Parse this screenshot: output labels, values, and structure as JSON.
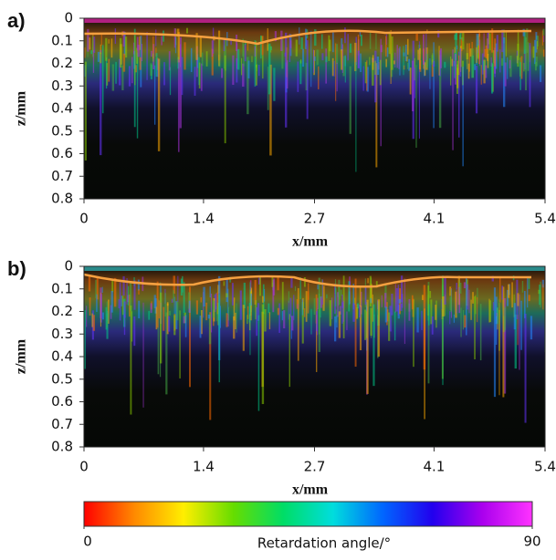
{
  "chart_data": [
    {
      "type": "image",
      "panel_label": "a)",
      "xlabel": "x/mm",
      "ylabel": "z/mm",
      "xlim": [
        0,
        5.4
      ],
      "xticks": [
        0,
        1.4,
        2.7,
        4.1,
        5.4
      ],
      "ylim": [
        0,
        0.8
      ],
      "yticks": [
        0,
        0.1,
        0.2,
        0.3,
        0.4,
        0.5,
        0.6,
        0.7,
        0.8
      ]
    },
    {
      "type": "image",
      "panel_label": "b)",
      "xlabel": "x/mm",
      "ylabel": "z/mm",
      "xlim": [
        0,
        5.4
      ],
      "xticks": [
        0,
        1.4,
        2.7,
        4.1,
        5.4
      ],
      "ylim": [
        0,
        0.8
      ],
      "yticks": [
        0,
        0.1,
        0.2,
        0.3,
        0.4,
        0.5,
        0.6,
        0.7,
        0.8
      ]
    }
  ],
  "colorbar": {
    "label": "Retardation angle/°",
    "lim": [
      0,
      90
    ],
    "ticks": [
      0,
      90
    ],
    "colors": [
      "#ff0000",
      "#ff8800",
      "#ffee00",
      "#66dd00",
      "#00dd66",
      "#00dddd",
      "#0066ff",
      "#2200ee",
      "#aa00ee",
      "#ff33ff"
    ]
  }
}
